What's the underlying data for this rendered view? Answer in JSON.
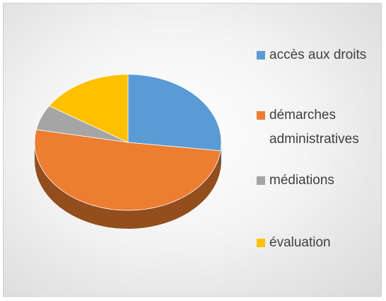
{
  "chart_data": {
    "type": "pie",
    "categories": [
      "accès aux droits",
      "démarches administratives",
      "médiations",
      "évaluation"
    ],
    "values": [
      27,
      51,
      6,
      16
    ],
    "colors": [
      "#5b9bd5",
      "#ed7d31",
      "#a5a5a5",
      "#ffc000"
    ],
    "legend": "right"
  }
}
